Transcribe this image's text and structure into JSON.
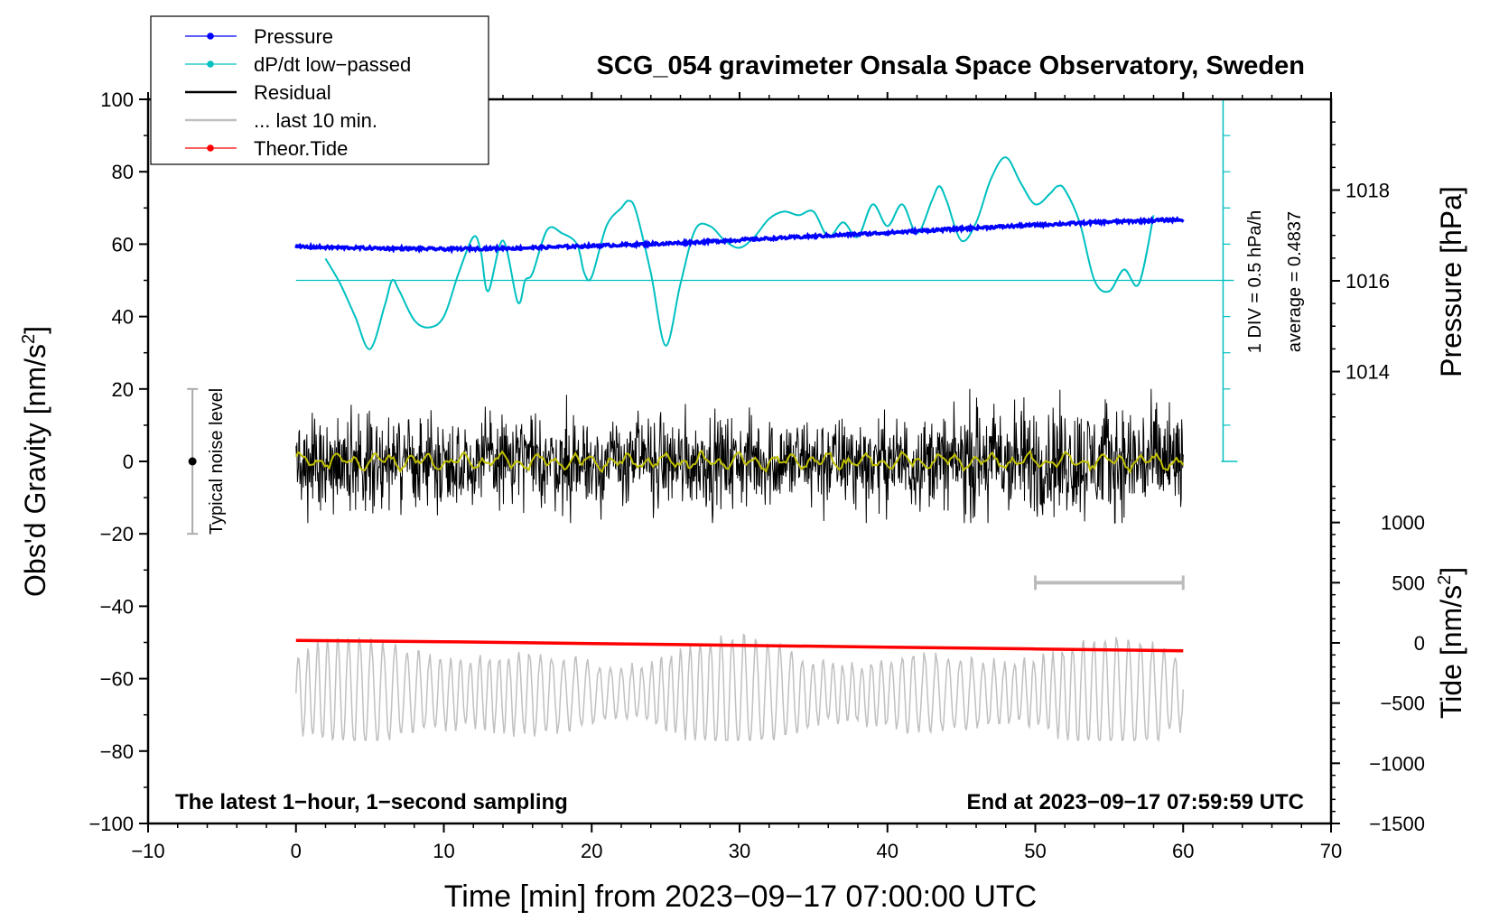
{
  "chart_data": {
    "type": "line",
    "title": "SCG_054 gravimeter Onsala Space Observatory, Sweden",
    "xlabel": "Time [min] from 2023−09−17 07:00:00 UTC",
    "ylabel_left": "Obs'd Gravity [nm/s",
    "ylabel_left_sup": "2",
    "ylabel_left_end": "]",
    "ylabel_right_pressure": "Pressure [hPa]",
    "ylabel_right_tide": "Tide [nm/s",
    "ylabel_right_tide_sup": "2",
    "ylabel_right_tide_end": "]",
    "xlim": [
      -10,
      70
    ],
    "ylim": [
      -100,
      100
    ],
    "pressure_lim": [
      1012,
      1020
    ],
    "tide_lim": [
      -1500,
      1500
    ],
    "x_ticks": [
      -10,
      0,
      10,
      20,
      30,
      40,
      50,
      60,
      70
    ],
    "x_tick_labels": [
      "−10",
      "0",
      "10",
      "20",
      "30",
      "40",
      "50",
      "60",
      "70"
    ],
    "y_ticks": [
      -100,
      -80,
      -60,
      -40,
      -20,
      0,
      20,
      40,
      60,
      80,
      100
    ],
    "y_tick_labels": [
      "−100",
      "−80",
      "−60",
      "−40",
      "−20",
      "0",
      "20",
      "40",
      "60",
      "80",
      "100"
    ],
    "pressure_ticks": [
      1014,
      1016,
      1018
    ],
    "pressure_tick_labels": [
      "1014",
      "1016",
      "1018"
    ],
    "tide_ticks": [
      -1500,
      -1000,
      -500,
      0,
      500,
      1000
    ],
    "tide_tick_labels": [
      "−1500",
      "−1000",
      "−500",
      "0",
      "500",
      "1000"
    ],
    "legend": [
      {
        "label": "Pressure",
        "color": "#0000ff",
        "marker": true
      },
      {
        "label": "dP/dt low−passed",
        "color": "#00c0c0",
        "marker": true
      },
      {
        "label": "Residual",
        "color": "#000000",
        "marker": false
      },
      {
        "label": "... last 10 min.",
        "color": "#c0c0c0",
        "marker": false
      },
      {
        "label": "Theor.Tide",
        "color": "#ff0000",
        "marker": true
      }
    ],
    "series": [
      {
        "name": "Pressure",
        "axis": "pressure",
        "color": "#0000ff",
        "x": [
          0,
          5,
          10,
          15,
          20,
          25,
          30,
          35,
          40,
          45,
          50,
          55,
          60
        ],
        "values": [
          1016.75,
          1016.72,
          1016.7,
          1016.72,
          1016.77,
          1016.82,
          1016.9,
          1016.98,
          1017.06,
          1017.15,
          1017.23,
          1017.3,
          1017.35
        ]
      },
      {
        "name": "dP/dt low-passed",
        "axis": "gravity",
        "color": "#00c0c0",
        "x": [
          2,
          3,
          4,
          5,
          6,
          6.5,
          7,
          8,
          9,
          10,
          11,
          12,
          12.5,
          13,
          14,
          15,
          15.5,
          16,
          17,
          18,
          19,
          19.5,
          20,
          21,
          22,
          22.5,
          23,
          24,
          25,
          26,
          27,
          28,
          29,
          30,
          31,
          32,
          33,
          34,
          35,
          36,
          37,
          38,
          39,
          40,
          41,
          42,
          43,
          43.5,
          44,
          45,
          46,
          47,
          48,
          49,
          50,
          51,
          51.5,
          52,
          53,
          54,
          55,
          56,
          57,
          58
        ],
        "values": [
          56,
          49,
          40,
          31,
          43,
          50,
          47,
          39,
          37,
          40,
          52,
          62,
          58,
          47,
          61,
          44,
          50,
          52,
          64,
          63,
          60,
          52,
          51,
          65,
          70,
          72,
          69,
          52,
          32,
          49,
          64,
          65,
          61,
          59,
          62,
          67,
          69,
          68,
          69,
          62,
          66,
          62,
          71,
          65,
          71,
          63,
          72,
          76,
          72,
          61,
          66,
          78,
          84,
          77,
          71,
          74,
          76,
          75,
          66,
          50,
          47,
          53,
          49,
          68
        ]
      },
      {
        "name": "Residual",
        "axis": "gravity",
        "color": "#000000",
        "x_range": [
          0,
          60
        ],
        "envelope": [
          -17,
          20
        ],
        "mean": 0
      },
      {
        "name": "Residual smoothed",
        "axis": "gravity",
        "color": "#c0c000",
        "x_range": [
          0,
          60
        ],
        "mean": 0
      },
      {
        "name": "Theor.Tide",
        "axis": "tide",
        "color": "#ff0000",
        "x": [
          0,
          10,
          20,
          30,
          40,
          50,
          60
        ],
        "values": [
          20,
          10,
          -5,
          -20,
          -35,
          -50,
          -65
        ]
      },
      {
        "name": "... last 10 min.",
        "axis": "gravity",
        "color": "#c0c0c0",
        "x_range": [
          0,
          60
        ],
        "center": -64,
        "envelope": [
          -77,
          -43
        ]
      }
    ],
    "annotations": {
      "noise_label": "Typical noise level",
      "noise_range": [
        -20,
        20
      ],
      "noise_x": -7,
      "scale_label": "1 DIV = 0.5 hPa/h",
      "average_label": "average = 0.4837",
      "scale_x": 62.7,
      "scale_range": [
        0,
        100
      ],
      "baseline_y": 50,
      "last10_bar_x": [
        50,
        60
      ],
      "last10_bar_tide": 500,
      "footer_left": "The latest 1−hour, 1−second sampling",
      "footer_right": "End at 2023−09−17 07:59:59 UTC"
    }
  }
}
